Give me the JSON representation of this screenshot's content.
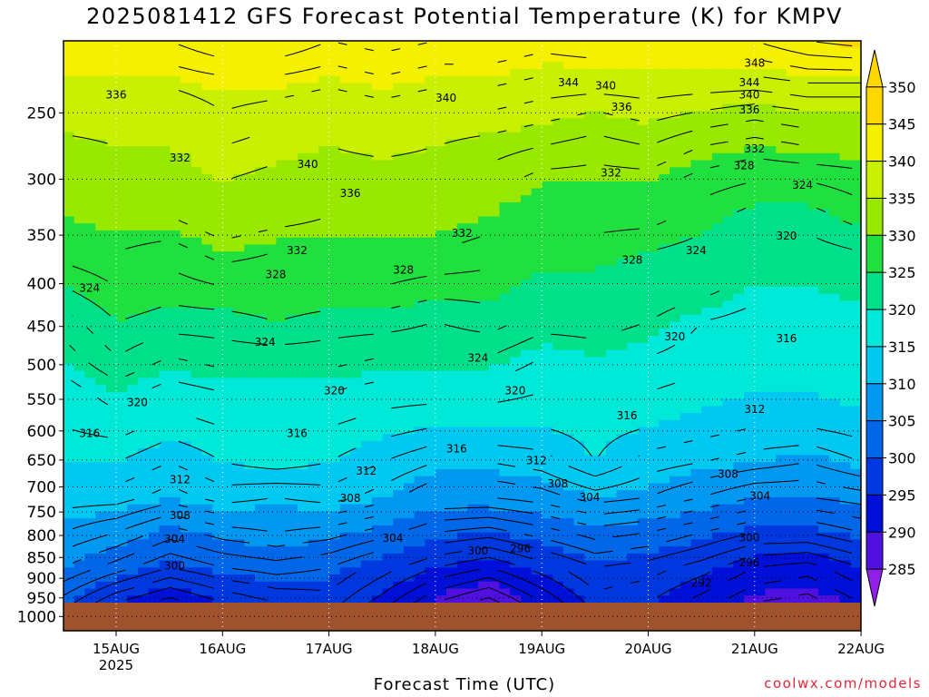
{
  "chart_data": {
    "type": "heatmap",
    "title": "2025081412 GFS Forecast Potential Temperature (K) for KMPV",
    "xlabel": "Forecast Time (UTC)",
    "ylabel": "",
    "x_ticks": [
      "15AUG",
      "16AUG",
      "17AUG",
      "18AUG",
      "19AUG",
      "20AUG",
      "21AUG",
      "22AUG"
    ],
    "x_tick_sub": "2025",
    "y_ticks": [
      250,
      300,
      350,
      400,
      450,
      500,
      550,
      600,
      650,
      700,
      750,
      800,
      850,
      900,
      950,
      1000
    ],
    "y_scale": "log",
    "grid": true,
    "colorbar": {
      "levels": [
        350,
        345,
        340,
        335,
        330,
        325,
        320,
        315,
        310,
        305,
        300,
        295,
        290,
        285
      ],
      "colors": [
        "#ffd800",
        "#f5f000",
        "#c8f000",
        "#98e800",
        "#20e040",
        "#00e08a",
        "#00e8d8",
        "#00c8f0",
        "#0098f0",
        "#0068e8",
        "#0038e0",
        "#0010d8",
        "#5010e0",
        "#9020e8"
      ]
    },
    "series": [
      {
        "values": [
          305,
          300,
          297,
          300,
          302,
          303,
          299,
          294,
          291,
          296,
          301,
          300,
          297,
          294,
          293,
          296
        ]
      },
      {
        "values": [
          310,
          307,
          304,
          306,
          307,
          306,
          303,
          300,
          298,
          301,
          304,
          303,
          301,
          298,
          297,
          300
        ]
      },
      {
        "values": [
          314,
          312,
          309,
          311,
          312,
          311,
          309,
          306,
          305,
          307,
          309,
          308,
          306,
          304,
          304,
          306
        ]
      },
      {
        "values": [
          317,
          317,
          315,
          317,
          316,
          317,
          315,
          312,
          312,
          313,
          315,
          314,
          312,
          310,
          310,
          311
        ]
      },
      {
        "values": [
          320,
          320,
          318,
          320,
          321,
          320,
          318,
          316,
          316,
          317,
          320,
          317,
          316,
          315,
          314,
          316
        ]
      },
      {
        "values": [
          322,
          323,
          321,
          322,
          323,
          322,
          321,
          320,
          320,
          320,
          321,
          320,
          319,
          318,
          318,
          319
        ]
      },
      {
        "values": [
          323,
          325,
          323,
          324,
          324,
          324,
          323,
          323,
          323,
          322,
          323,
          322,
          321,
          320,
          320,
          321
        ]
      },
      {
        "values": [
          325,
          328,
          326,
          327,
          327,
          327,
          326,
          326,
          326,
          324,
          325,
          324,
          323,
          322,
          322,
          323
        ]
      },
      {
        "values": [
          327,
          330,
          329,
          329,
          330,
          329,
          329,
          328,
          329,
          327,
          327,
          326,
          324,
          323,
          323,
          324
        ]
      },
      {
        "values": [
          330,
          332,
          331,
          332,
          332,
          332,
          332,
          331,
          331,
          329,
          329,
          328,
          327,
          325,
          325,
          326
        ]
      },
      {
        "values": [
          333,
          334,
          333,
          335,
          334,
          334,
          334,
          334,
          333,
          331,
          331,
          330,
          329,
          327,
          327,
          328
        ]
      },
      {
        "values": [
          335,
          336,
          336,
          338,
          337,
          336,
          336,
          336,
          335,
          333,
          333,
          333,
          331,
          329,
          329,
          331
        ]
      },
      {
        "values": [
          337,
          338,
          338,
          340,
          339,
          338,
          338,
          338,
          337,
          335,
          335,
          335,
          333,
          332,
          332,
          333
        ]
      },
      {
        "values": [
          339,
          340,
          340,
          342,
          341,
          340,
          341,
          340,
          339,
          338,
          337,
          338,
          336,
          335,
          336,
          336
        ]
      },
      {
        "values": [
          342,
          342,
          342,
          344,
          343,
          342,
          343,
          342,
          342,
          341,
          340,
          341,
          340,
          339,
          340,
          340
        ]
      },
      {
        "values": [
          345,
          345,
          345,
          346,
          346,
          345,
          346,
          345,
          345,
          344,
          344,
          344,
          344,
          344,
          345,
          345
        ]
      },
      {
        "values": [
          348,
          348,
          348,
          350,
          350,
          348,
          349,
          348,
          348,
          347,
          348,
          348,
          348,
          348,
          350,
          351
        ]
      }
    ],
    "contour_labels": [
      {
        "text": "336",
        "x": 0.0,
        "p": 238
      },
      {
        "text": "332",
        "x": 0.6,
        "p": 283
      },
      {
        "text": "340",
        "x": 1.8,
        "p": 288
      },
      {
        "text": "336",
        "x": 2.2,
        "p": 312
      },
      {
        "text": "340",
        "x": 3.1,
        "p": 240
      },
      {
        "text": "344",
        "x": 4.25,
        "p": 230
      },
      {
        "text": "340",
        "x": 4.6,
        "p": 232
      },
      {
        "text": "336",
        "x": 4.75,
        "p": 246
      },
      {
        "text": "348",
        "x": 6.0,
        "p": 218
      },
      {
        "text": "344",
        "x": 5.95,
        "p": 230
      },
      {
        "text": "340",
        "x": 5.95,
        "p": 238
      },
      {
        "text": "336",
        "x": 5.95,
        "p": 248
      },
      {
        "text": "332",
        "x": 6.0,
        "p": 276
      },
      {
        "text": "328",
        "x": 5.9,
        "p": 289
      },
      {
        "text": "324",
        "x": 6.45,
        "p": 305
      },
      {
        "text": "332",
        "x": 4.65,
        "p": 295
      },
      {
        "text": "332",
        "x": 3.25,
        "p": 348
      },
      {
        "text": "332",
        "x": 1.7,
        "p": 365
      },
      {
        "text": "328",
        "x": 1.5,
        "p": 390
      },
      {
        "text": "328",
        "x": 2.7,
        "p": 385
      },
      {
        "text": "328",
        "x": 4.85,
        "p": 375
      },
      {
        "text": "324",
        "x": 5.45,
        "p": 365
      },
      {
        "text": "320",
        "x": 6.3,
        "p": 351
      },
      {
        "text": "324",
        "x": -0.25,
        "p": 405
      },
      {
        "text": "324",
        "x": 1.4,
        "p": 470
      },
      {
        "text": "324",
        "x": 3.4,
        "p": 491
      },
      {
        "text": "320",
        "x": 5.25,
        "p": 463
      },
      {
        "text": "316",
        "x": 6.3,
        "p": 465
      },
      {
        "text": "320",
        "x": 0.2,
        "p": 555
      },
      {
        "text": "320",
        "x": 2.05,
        "p": 537
      },
      {
        "text": "320",
        "x": 3.75,
        "p": 537
      },
      {
        "text": "316",
        "x": 4.8,
        "p": 575
      },
      {
        "text": "312",
        "x": 6.0,
        "p": 565
      },
      {
        "text": "316",
        "x": -0.25,
        "p": 604
      },
      {
        "text": "316",
        "x": 1.7,
        "p": 604
      },
      {
        "text": "316",
        "x": 3.2,
        "p": 630
      },
      {
        "text": "312",
        "x": 3.95,
        "p": 651
      },
      {
        "text": "312",
        "x": 0.6,
        "p": 686
      },
      {
        "text": "312",
        "x": 2.35,
        "p": 670
      },
      {
        "text": "308",
        "x": 4.15,
        "p": 694
      },
      {
        "text": "308",
        "x": 5.75,
        "p": 676
      },
      {
        "text": "304",
        "x": 4.45,
        "p": 720
      },
      {
        "text": "304",
        "x": 6.05,
        "p": 718
      },
      {
        "text": "308",
        "x": 0.6,
        "p": 757
      },
      {
        "text": "308",
        "x": 2.2,
        "p": 722
      },
      {
        "text": "304",
        "x": 0.55,
        "p": 808
      },
      {
        "text": "304",
        "x": 2.6,
        "p": 806
      },
      {
        "text": "300",
        "x": 0.55,
        "p": 870
      },
      {
        "text": "300",
        "x": 3.4,
        "p": 835
      },
      {
        "text": "296",
        "x": 3.8,
        "p": 830
      },
      {
        "text": "300",
        "x": 5.95,
        "p": 805
      },
      {
        "text": "296",
        "x": 5.95,
        "p": 862
      },
      {
        "text": "292",
        "x": 5.5,
        "p": 912
      }
    ]
  },
  "chart_title": "2025081412 GFS Forecast Potential Temperature (K) for KMPV",
  "credit": "coolwx.com/models"
}
